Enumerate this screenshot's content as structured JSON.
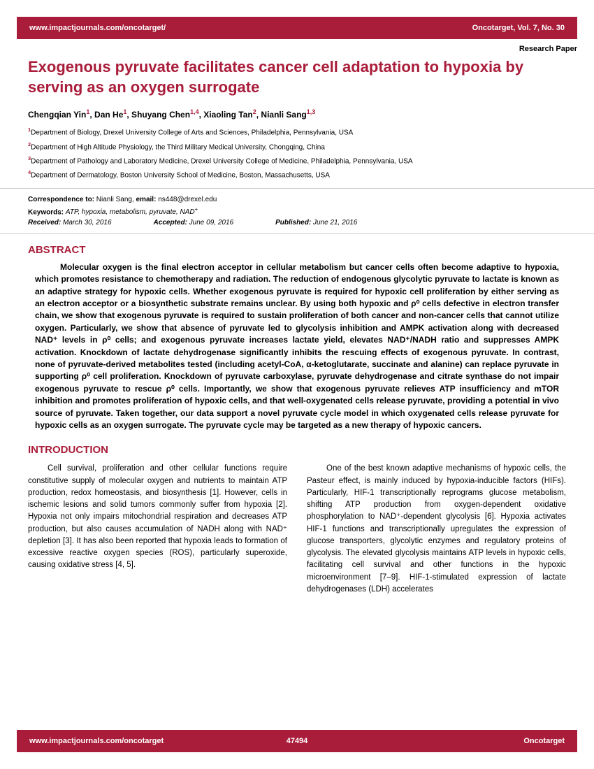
{
  "header": {
    "url": "www.impactjournals.com/oncotarget/",
    "journal": "Oncotarget, Vol. 7, No. 30"
  },
  "section_label": "Research Paper",
  "title": "Exogenous pyruvate facilitates cancer cell adaptation to hypoxia by serving as an oxygen surrogate",
  "affiliations": {
    "a1": "Department of Biology, Drexel University College of Arts and Sciences, Philadelphia, Pennsylvania, USA",
    "a2": "Department of High Altitude Physiology, the Third Military Medical University, Chongqing, China",
    "a3": "Department of Pathology and Laboratory Medicine, Drexel University College of Medicine, Philadelphia, Pennsylvania, USA",
    "a4": "Department of Dermatology, Boston University School of Medicine, Boston, Massachusetts, USA"
  },
  "meta": {
    "correspondence_label": "Correspondence to:",
    "correspondence_name": "Nianli Sang,",
    "email_label": "email:",
    "email": "ns448@drexel.edu",
    "keywords_label": "Keywords:",
    "keywords": "ATP, hypoxia, metabolism, pyruvate, NAD",
    "received_label": "Received:",
    "received": "March 30, 2016",
    "accepted_label": "Accepted:",
    "accepted": "June 09, 2016",
    "published_label": "Published:",
    "published": "June 21, 2016"
  },
  "abstract_heading": "ABSTRACT",
  "abstract_body": "Molecular oxygen is the final electron acceptor in cellular metabolism but cancer cells often become adaptive to hypoxia, which promotes resistance to chemotherapy and radiation. The reduction of endogenous glycolytic pyruvate to lactate is known as an adaptive strategy for hypoxic cells. Whether exogenous pyruvate is required for hypoxic cell proliferation by either serving as an electron acceptor or a biosynthetic substrate remains unclear. By using both hypoxic and ρ⁰ cells defective in electron transfer chain, we show that exogenous pyruvate is required to sustain proliferation of both cancer and non-cancer cells that cannot utilize oxygen. Particularly, we show that absence of pyruvate led to glycolysis inhibition and AMPK activation along with decreased NAD⁺ levels in ρ⁰ cells; and exogenous pyruvate increases lactate yield, elevates NAD⁺/NADH ratio and suppresses AMPK activation. Knockdown of lactate dehydrogenase significantly inhibits the rescuing effects of exogenous pyruvate. In contrast, none of pyruvate-derived metabolites tested (including acetyl-CoA, α-ketoglutarate, succinate and alanine) can replace pyruvate in supporting ρ⁰ cell proliferation. Knockdown of pyruvate carboxylase, pyruvate dehydrogenase and citrate synthase do not impair exogenous pyruvate to rescue ρ⁰ cells. Importantly, we show that exogenous pyruvate relieves ATP insufficiency and mTOR inhibition and promotes proliferation of hypoxic cells, and that well-oxygenated cells release pyruvate, providing a potential in vivo source of pyruvate. Taken together, our data support a novel pyruvate cycle model in which oxygenated cells release pyruvate for hypoxic cells as an oxygen surrogate. The pyruvate cycle may be targeted as a new therapy of hypoxic cancers.",
  "intro_heading": "INTRODUCTION",
  "intro_col1": "Cell survival, proliferation and other cellular functions require constitutive supply of molecular oxygen and nutrients to maintain ATP production, redox homeostasis, and biosynthesis [1]. However, cells in ischemic lesions and solid tumors commonly suffer from hypoxia [2]. Hypoxia not only impairs mitochondrial respiration and decreases ATP production, but also causes accumulation of NADH along with NAD⁺ depletion [3]. It has also been reported that hypoxia leads to formation of excessive reactive oxygen species (ROS), particularly superoxide, causing oxidative stress [4, 5].",
  "intro_col2": "One of the best known adaptive mechanisms of hypoxic cells, the Pasteur effect, is mainly induced by hypoxia-inducible factors (HIFs). Particularly, HIF-1 transcriptionally reprograms glucose metabolism, shifting ATP production from oxygen-dependent oxidative phosphorylation to NAD⁺-dependent glycolysis [6]. Hypoxia activates HIF-1 functions and transcriptionally upregulates the expression of glucose transporters, glycolytic enzymes and regulatory proteins of glycolysis. The elevated glycolysis maintains ATP levels in hypoxic cells, facilitating cell survival and other functions in the hypoxic microenvironment [7–9]. HIF-1-stimulated expression of lactate dehydrogenases (LDH) accelerates",
  "footer": {
    "url": "www.impactjournals.com/oncotarget",
    "page_number": "47494",
    "journal": "Oncotarget"
  },
  "colors": {
    "primary": "#a91d3a",
    "text": "#000000",
    "background": "#ffffff"
  }
}
